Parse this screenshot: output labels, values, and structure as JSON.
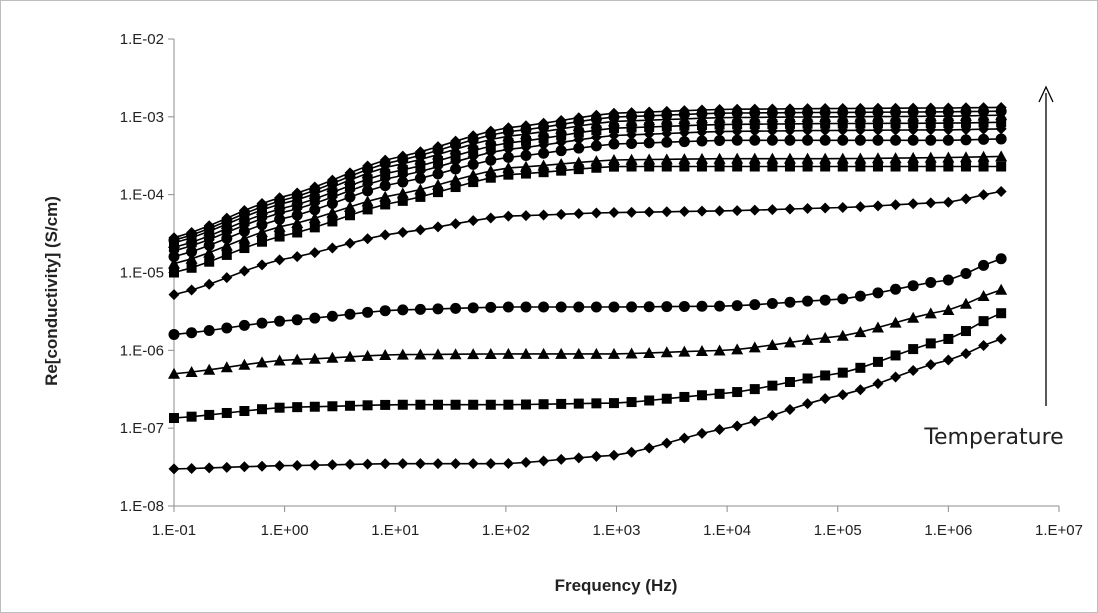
{
  "chart_data": {
    "type": "line",
    "title": "",
    "xlabel": "Frequency (Hz)",
    "ylabel": "Re[conductivity]  (S/cm)",
    "x_scale": "log",
    "y_scale": "log",
    "xlim": [
      0.1,
      10000000
    ],
    "ylim": [
      1e-08,
      0.01
    ],
    "x_ticks": [
      0.1,
      1,
      10,
      100,
      1000,
      10000,
      100000,
      1000000,
      10000000
    ],
    "x_tick_labels": [
      "1.E-01",
      "1.E+00",
      "1.E+01",
      "1.E+02",
      "1.E+03",
      "1.E+04",
      "1.E+05",
      "1.E+06",
      "1.E+07"
    ],
    "y_ticks": [
      1e-08,
      1e-07,
      1e-06,
      1e-05,
      0.0001,
      0.001,
      0.01
    ],
    "y_tick_labels": [
      "1.E-08",
      "1.E-07",
      "1.E-06",
      "1.E-05",
      "1.E-04",
      "1.E-03",
      "1.E-02"
    ],
    "grid": false,
    "legend": "none",
    "line_color": "#000000",
    "annotations": [
      {
        "text": "Temperature",
        "arrow": "up"
      }
    ],
    "series": [
      {
        "marker": "diamond",
        "x": [
          0.1,
          1,
          10,
          100,
          1000,
          10000,
          100000,
          1000000,
          3000000
        ],
        "y": [
          3e-08,
          3.3e-08,
          3.5e-08,
          3.5e-08,
          4.5e-08,
          1e-07,
          2.6e-07,
          7.5e-07,
          1.4e-06
        ]
      },
      {
        "marker": "square",
        "x": [
          0.1,
          1,
          10,
          100,
          1000,
          10000,
          100000,
          1000000,
          3000000
        ],
        "y": [
          1.35e-07,
          1.85e-07,
          2e-07,
          2e-07,
          2.1e-07,
          2.8e-07,
          5e-07,
          1.4e-06,
          3e-06
        ]
      },
      {
        "marker": "triangle",
        "x": [
          0.1,
          1,
          10,
          100,
          1000,
          10000,
          100000,
          1000000,
          3000000
        ],
        "y": [
          5e-07,
          7.5e-07,
          8.8e-07,
          9e-07,
          9e-07,
          1e-06,
          1.5e-06,
          3.3e-06,
          6e-06
        ]
      },
      {
        "marker": "circle",
        "x": [
          0.1,
          1,
          10,
          100,
          1000,
          10000,
          100000,
          1000000,
          3000000
        ],
        "y": [
          1.6e-06,
          2.4e-06,
          3.3e-06,
          3.6e-06,
          3.6e-06,
          3.7e-06,
          4.5e-06,
          8e-06,
          1.5e-05
        ]
      },
      {
        "marker": "diamond",
        "x": [
          0.1,
          1,
          10,
          100,
          1000,
          10000,
          100000,
          1000000,
          3000000
        ],
        "y": [
          5.2e-06,
          1.5e-05,
          3.2e-05,
          5.3e-05,
          5.9e-05,
          6.2e-05,
          6.8e-05,
          8e-05,
          0.00011
        ]
      },
      {
        "marker": "square",
        "x": [
          0.1,
          1,
          10,
          100,
          1000,
          10000,
          100000,
          1000000,
          3000000
        ],
        "y": [
          1e-05,
          3e-05,
          8e-05,
          0.00018,
          0.00023,
          0.00023,
          0.00023,
          0.00023,
          0.00023
        ]
      },
      {
        "marker": "triangle",
        "x": [
          0.1,
          1,
          10,
          100,
          1000,
          10000,
          100000,
          1000000,
          3000000
        ],
        "y": [
          1.3e-05,
          4e-05,
          0.0001,
          0.00022,
          0.00028,
          0.00029,
          0.00029,
          0.0003,
          0.00031
        ]
      },
      {
        "marker": "circle",
        "x": [
          0.1,
          1,
          10,
          100,
          1000,
          10000,
          100000,
          1000000,
          3000000
        ],
        "y": [
          1.6e-05,
          5e-05,
          0.00014,
          0.0003,
          0.00045,
          0.0005,
          0.0005,
          0.0005,
          0.00052
        ]
      },
      {
        "marker": "diamond",
        "x": [
          0.1,
          1,
          10,
          100,
          1000,
          10000,
          100000,
          1000000,
          3000000
        ],
        "y": [
          1.9e-05,
          6e-05,
          0.00017,
          0.00038,
          0.00058,
          0.00065,
          0.00067,
          0.00068,
          0.0007
        ]
      },
      {
        "marker": "square",
        "x": [
          0.1,
          1,
          10,
          100,
          1000,
          10000,
          100000,
          1000000,
          3000000
        ],
        "y": [
          2.1e-05,
          6.8e-05,
          0.0002,
          0.00046,
          0.00072,
          0.0008,
          0.00082,
          0.00083,
          0.00085
        ]
      },
      {
        "marker": "triangle",
        "x": [
          0.1,
          1,
          10,
          100,
          1000,
          10000,
          100000,
          1000000,
          3000000
        ],
        "y": [
          2.4e-05,
          7.8e-05,
          0.00024,
          0.00056,
          0.00088,
          0.00098,
          0.001,
          0.00102,
          0.00105
        ]
      },
      {
        "marker": "circle",
        "x": [
          0.1,
          1,
          10,
          100,
          1000,
          10000,
          100000,
          1000000,
          3000000
        ],
        "y": [
          2.6e-05,
          8.6e-05,
          0.00027,
          0.00064,
          0.001,
          0.00112,
          0.00114,
          0.00116,
          0.00118
        ]
      },
      {
        "marker": "diamond",
        "x": [
          0.1,
          1,
          10,
          100,
          1000,
          10000,
          100000,
          1000000,
          3000000
        ],
        "y": [
          2.8e-05,
          9.5e-05,
          0.0003,
          0.00072,
          0.00112,
          0.00125,
          0.00128,
          0.0013,
          0.00132
        ]
      }
    ]
  }
}
